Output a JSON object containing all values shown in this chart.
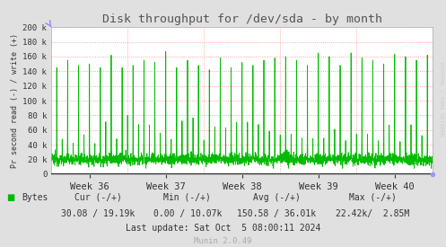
{
  "title": "Disk throughput for /dev/sda - by month",
  "ylabel": "Pr second read (-) / write (+)",
  "bg_color": "#e0e0e0",
  "plot_bg_color": "#ffffff",
  "grid_color": "#ff8888",
  "line_color": "#00bb00",
  "zero_line_color": "#000000",
  "ylim": [
    0,
    200000
  ],
  "yticks": [
    0,
    20000,
    40000,
    60000,
    80000,
    100000,
    120000,
    140000,
    160000,
    180000,
    200000
  ],
  "ytick_labels": [
    "0",
    "20 k",
    "40 k",
    "60 k",
    "80 k",
    "100 k",
    "120 k",
    "140 k",
    "160 k",
    "180 k",
    "200 k"
  ],
  "week_labels": [
    "Week 36",
    "Week 37",
    "Week 38",
    "Week 39",
    "Week 40"
  ],
  "legend_label": "Bytes",
  "legend_color": "#00bb00",
  "cur_text": "Cur (-/+)",
  "min_text": "Min (-/+)",
  "avg_text": "Avg (-/+)",
  "max_text": "Max (-/+)",
  "cur_val": "30.08 / 19.19k",
  "min_val": "0.00 / 10.07k",
  "avg_val": "150.58 / 36.01k",
  "max_val": "22.42k/  2.85M",
  "last_update": "Last update: Sat Oct  5 08:00:11 2024",
  "munin_text": "Munin 2.0.49",
  "rrdtool_text": "RRDTOOL / TOBI OETIKER",
  "title_color": "#555555",
  "axis_color": "#333333",
  "footer_color": "#aaaaaa",
  "rrdtool_color": "#cccccc",
  "num_points": 2100,
  "base_low": 15000,
  "base_high": 30000,
  "num_spikes": 35
}
